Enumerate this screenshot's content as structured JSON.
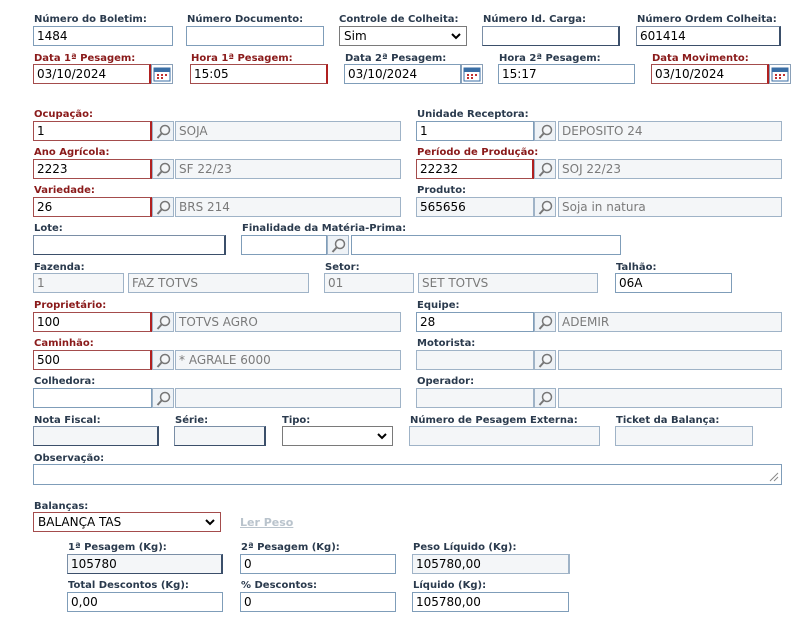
{
  "row1": {
    "numero_boletim": {
      "label": "Número do Boletim:",
      "value": "1484"
    },
    "numero_documento": {
      "label": "Número Documento:",
      "value": ""
    },
    "controle_colheita": {
      "label": "Controle de Colheita:",
      "value": "Sim"
    },
    "numero_id_carga": {
      "label": "Número Id. Carga:",
      "value": ""
    },
    "numero_ordem_colheita": {
      "label": "Número Ordem Colheita:",
      "value": "601414"
    }
  },
  "row2": {
    "data_1_pesagem": {
      "label": "Data 1ª Pesagem:",
      "value": "03/10/2024"
    },
    "hora_1_pesagem": {
      "label": "Hora 1ª Pesagem:",
      "value": "15:05"
    },
    "data_2_pesagem": {
      "label": "Data 2ª Pesagem:",
      "value": "03/10/2024"
    },
    "hora_2_pesagem": {
      "label": "Hora 2ª Pesagem:",
      "value": "15:17"
    },
    "data_movimento": {
      "label": "Data Movimento:",
      "value": "03/10/2024"
    }
  },
  "ocupacao": {
    "label": "Ocupação:",
    "code": "1",
    "desc": "SOJA"
  },
  "unidade_receptora": {
    "label": "Unidade Receptora:",
    "code": "1",
    "desc": "DEPOSITO 24"
  },
  "ano_agricola": {
    "label": "Ano Agrícola:",
    "code": "2223",
    "desc": "SF 22/23"
  },
  "periodo_producao": {
    "label": "Período de Produção:",
    "code": "22232",
    "desc": "SOJ 22/23"
  },
  "variedade": {
    "label": "Variedade:",
    "code": "26",
    "desc": "BRS 214"
  },
  "produto": {
    "label": "Produto:",
    "code": "565656",
    "desc": "Soja in natura"
  },
  "lote": {
    "label": "Lote:",
    "value": ""
  },
  "finalidade": {
    "label": "Finalidade da Matéria-Prima:",
    "code": "",
    "desc": ""
  },
  "fazenda": {
    "label": "Fazenda:",
    "code": "1",
    "desc": "FAZ TOTVS"
  },
  "setor": {
    "label": "Setor:",
    "code": "01",
    "desc": "SET TOTVS"
  },
  "talhao": {
    "label": "Talhão:",
    "value": "06A"
  },
  "proprietario": {
    "label": "Proprietário:",
    "code": "100",
    "desc": "TOTVS AGRO"
  },
  "equipe": {
    "label": "Equipe:",
    "code": "28",
    "desc": "ADEMIR"
  },
  "caminhao": {
    "label": "Caminhão:",
    "code": "500",
    "desc": "* AGRALE 6000"
  },
  "motorista": {
    "label": "Motorista:",
    "code": "",
    "desc": ""
  },
  "colhedora": {
    "label": "Colhedora:",
    "code": "",
    "desc": ""
  },
  "operador": {
    "label": "Operador:",
    "code": "",
    "desc": ""
  },
  "nota_fiscal": {
    "label": "Nota Fiscal:",
    "value": ""
  },
  "serie": {
    "label": "Série:",
    "value": ""
  },
  "tipo": {
    "label": "Tipo:",
    "value": ""
  },
  "numero_pesagem_externa": {
    "label": "Número de Pesagem Externa:",
    "value": ""
  },
  "ticket_balanca": {
    "label": "Ticket da Balança:",
    "value": ""
  },
  "observacao": {
    "label": "Observação:",
    "value": ""
  },
  "balancas": {
    "label": "Balanças:",
    "value": "BALANÇA TAS",
    "ler_peso": "Ler Peso"
  },
  "pesos": {
    "primeira": {
      "label": "1ª Pesagem (Kg):",
      "value": "105780"
    },
    "segunda": {
      "label": "2ª Pesagem (Kg):",
      "value": "0"
    },
    "peso_liquido": {
      "label": "Peso Líquido (Kg):",
      "value": "105780,00"
    },
    "total_descontos": {
      "label": "Total Descontos (Kg):",
      "value": "0,00"
    },
    "pct_descontos": {
      "label": "% Descontos:",
      "value": "0"
    },
    "liquido": {
      "label": "Líquido (Kg):",
      "value": "105780,00"
    }
  }
}
